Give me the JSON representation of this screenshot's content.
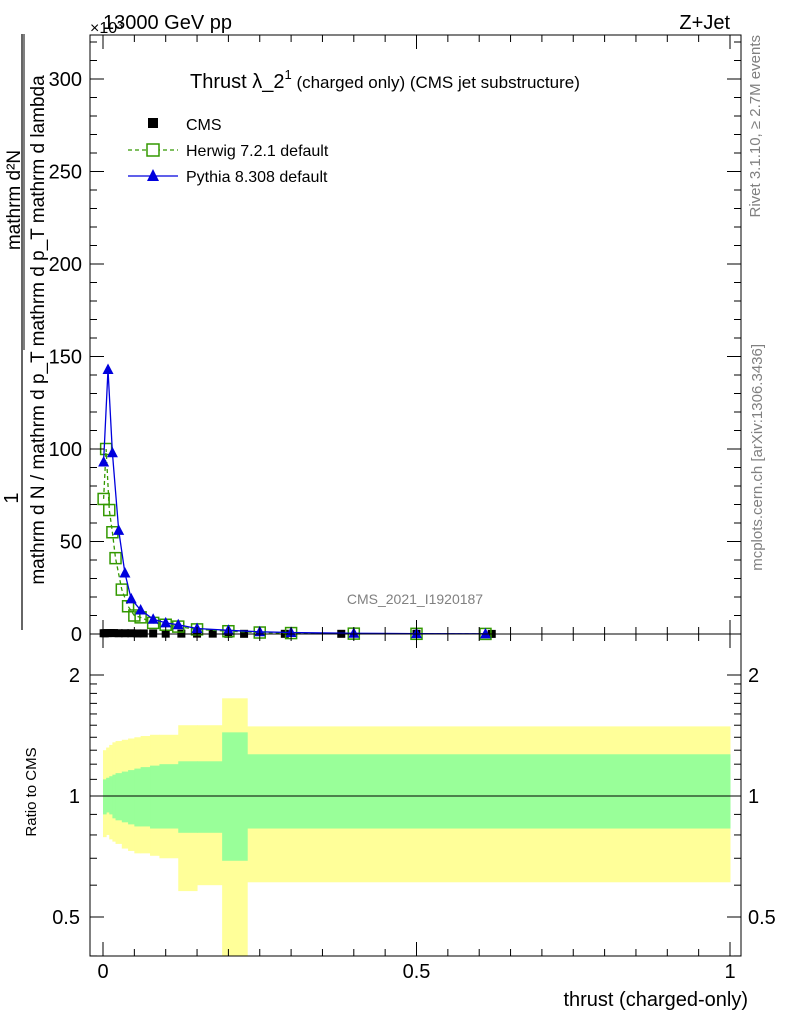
{
  "header": {
    "energy_label": "13000 GeV pp",
    "process_label": "Z+Jet",
    "exponent_label": "×10³"
  },
  "side_labels": {
    "rivet": "Rivet 3.1.10, ≥ 2.7M events",
    "mcplots": "mcplots.cern.ch [arXiv:1306.3436]"
  },
  "chart_data": [
    {
      "type": "line",
      "title": "Thrust λ_2¹ (charged only) (CMS jet substructure)",
      "title_main": "Thrust λ_2",
      "title_sup": "1",
      "title_rest": " (charged only) (CMS jet substructure)",
      "analysis_label": "CMS_2021_I1920187",
      "ylabel": "1 / mathrm d N / mathrm d p_T  mathrm d²N / mathrm d p_T mathrm d lambda",
      "ylabel_parts": {
        "one": "1",
        "numerator": "mathrm d²N",
        "denominator": "mathrm d N / mathrm d p_T mathrm d p_T mathrm d lambda"
      },
      "y_multiplier": 1000,
      "xlim": [
        0,
        1
      ],
      "ylim": [
        0,
        320
      ],
      "yticks": [
        0,
        50,
        100,
        150,
        200,
        250,
        300
      ],
      "legend_position": "top-left",
      "series": [
        {
          "name": "CMS",
          "color": "#000000",
          "marker": "square-filled",
          "x": [
            0.001,
            0.0035,
            0.0075,
            0.0125,
            0.0175,
            0.025,
            0.035,
            0.045,
            0.055,
            0.065,
            0.08,
            0.1,
            0.125,
            0.15,
            0.175,
            0.2,
            0.225,
            0.29,
            0.38,
            0.5,
            0.62
          ],
          "values": [
            0.4,
            0.4,
            0.5,
            0.5,
            0.5,
            0.4,
            0.4,
            0.4,
            0.3,
            0.3,
            0.3,
            0.2,
            0.2,
            0.2,
            0.2,
            0.1,
            0.1,
            0.1,
            0.1,
            0.1,
            0.05
          ]
        },
        {
          "name": "Herwig 7.2.1 default",
          "color": "#339900",
          "marker": "square-open",
          "linestyle": "dashed",
          "x": [
            0.001,
            0.005,
            0.01,
            0.015,
            0.02,
            0.03,
            0.04,
            0.05,
            0.06,
            0.08,
            0.1,
            0.12,
            0.15,
            0.2,
            0.25,
            0.3,
            0.4,
            0.5,
            0.61
          ],
          "values": [
            73,
            100,
            67,
            55,
            41,
            24,
            15,
            10,
            9,
            6,
            5,
            4,
            2.5,
            1.5,
            0.8,
            0.5,
            0.2,
            0.1,
            0.05
          ]
        },
        {
          "name": "Pythia 8.308 default",
          "color": "#0000dd",
          "marker": "triangle-filled",
          "linestyle": "solid",
          "x": [
            0.001,
            0.008,
            0.015,
            0.025,
            0.035,
            0.045,
            0.06,
            0.08,
            0.1,
            0.12,
            0.15,
            0.2,
            0.25,
            0.3,
            0.4,
            0.5,
            0.61
          ],
          "values": [
            93,
            143,
            98,
            56,
            33,
            19,
            13,
            8,
            6,
            5,
            3,
            2,
            1.2,
            0.8,
            0.4,
            0.2,
            0.1
          ]
        }
      ]
    },
    {
      "type": "area",
      "ylabel": "Ratio to CMS",
      "xlabel": "thrust (charged-only)",
      "xlim": [
        0,
        1
      ],
      "ylim": [
        0.35,
        2.3
      ],
      "yticks": [
        0.5,
        1,
        2
      ],
      "xticks": [
        0,
        0.5,
        1
      ],
      "bands": {
        "bin_edges": [
          0.0,
          0.005,
          0.01,
          0.015,
          0.02,
          0.03,
          0.04,
          0.05,
          0.06,
          0.075,
          0.09,
          0.12,
          0.15,
          0.19,
          0.23,
          1.0
        ],
        "stat_color": "#99ff99",
        "total_color": "#ffff99",
        "stat_low": [
          0.9,
          0.91,
          0.9,
          0.88,
          0.87,
          0.86,
          0.85,
          0.84,
          0.84,
          0.83,
          0.83,
          0.81,
          0.81,
          0.69,
          0.83
        ],
        "stat_high": [
          1.1,
          1.11,
          1.12,
          1.13,
          1.14,
          1.15,
          1.16,
          1.17,
          1.18,
          1.19,
          1.2,
          1.22,
          1.22,
          1.44,
          1.27
        ],
        "total_low": [
          0.79,
          0.8,
          0.78,
          0.77,
          0.76,
          0.74,
          0.73,
          0.72,
          0.72,
          0.71,
          0.7,
          0.58,
          0.6,
          0.35,
          0.61
        ],
        "total_high": [
          1.3,
          1.32,
          1.34,
          1.36,
          1.37,
          1.38,
          1.39,
          1.4,
          1.41,
          1.42,
          1.42,
          1.5,
          1.5,
          1.75,
          1.49
        ]
      }
    }
  ]
}
